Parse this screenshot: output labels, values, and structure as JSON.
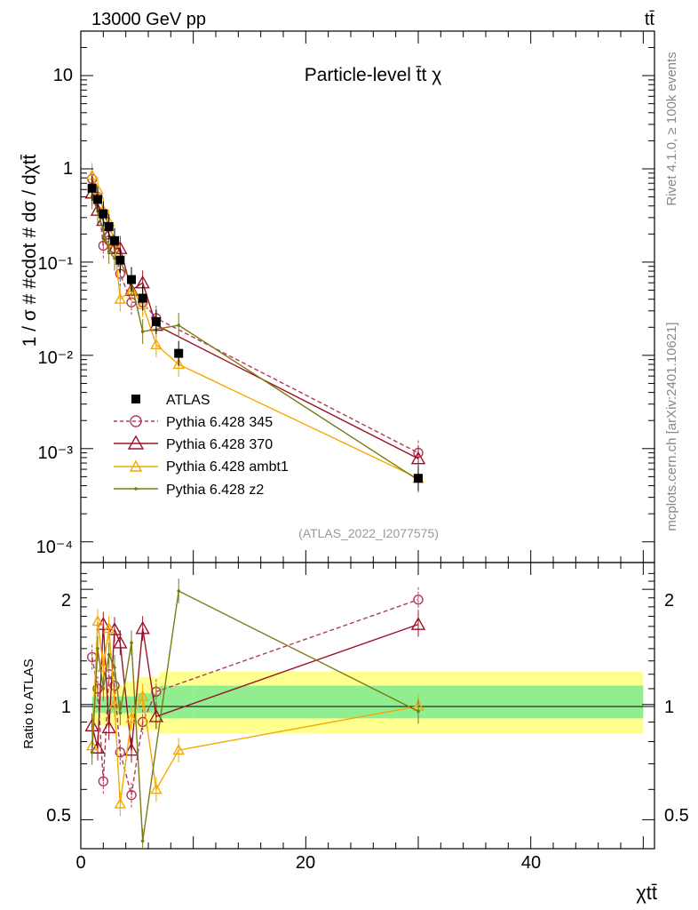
{
  "header": {
    "beam_label": "13000 GeV pp",
    "process_label": "tt̄"
  },
  "side_text": {
    "rivet": "Rivet 4.1.0, ≥ 100k events",
    "mcplots": "mcplots.cern.ch [arXiv:2401.10621]"
  },
  "colors": {
    "atlas": "#000000",
    "p345": "#b03a5a",
    "p370": "#9b1228",
    "ambt1": "#f5a800",
    "z2": "#7a7a14",
    "band_inner": "#90ee90",
    "band_outer": "#ffff90"
  },
  "chart_data": [
    {
      "type": "scatter",
      "title": "Particle-level t̄t χ",
      "ylabel": "1 / σ # #cdot # dσ / dχtt̄",
      "watermark": "(ATLAS_2022_I2077575)",
      "xlim": [
        0,
        51
      ],
      "ylim": [
        6e-05,
        30
      ],
      "yscale": "log",
      "ytick_labels": [
        "10",
        "1",
        "10⁻¹",
        "10⁻²",
        "10⁻³",
        "10⁻⁴"
      ],
      "ytick_values": [
        10,
        1,
        0.1,
        0.01,
        0.001,
        0.0001
      ],
      "legend_position": "middle-left",
      "series": [
        {
          "name": "ATLAS",
          "style": "square",
          "color_key": "atlas",
          "x": [
            1.0,
            1.5,
            2.0,
            2.5,
            3.0,
            3.5,
            4.5,
            5.5,
            6.7,
            8.7,
            30
          ],
          "y": [
            0.62,
            0.47,
            0.33,
            0.24,
            0.17,
            0.105,
            0.065,
            0.041,
            0.023,
            0.0105,
            0.00048
          ]
        },
        {
          "name": "Pythia 6.428 345",
          "style": "circle-dashed",
          "color_key": "p345",
          "x": [
            1.0,
            1.5,
            2.0,
            2.5,
            3.0,
            3.5,
            4.5,
            5.5,
            6.7,
            30
          ],
          "y": [
            0.78,
            0.5,
            0.15,
            0.17,
            0.14,
            0.075,
            0.037,
            0.037,
            0.025,
            0.0009
          ]
        },
        {
          "name": "Pythia 6.428 370",
          "style": "triangle-solid",
          "color_key": "p370",
          "x": [
            1.0,
            1.5,
            2.0,
            2.5,
            3.0,
            3.5,
            4.5,
            5.5,
            6.7,
            30
          ],
          "y": [
            0.55,
            0.36,
            0.28,
            0.2,
            0.14,
            0.14,
            0.05,
            0.06,
            0.021,
            0.00078
          ]
        },
        {
          "name": "Pythia 6.428 ambt1",
          "style": "triangle-solid",
          "color_key": "ambt1",
          "x": [
            1.0,
            1.5,
            2.0,
            2.5,
            3.0,
            3.5,
            4.5,
            5.5,
            6.7,
            8.7,
            30
          ],
          "y": [
            0.85,
            0.6,
            0.36,
            0.27,
            0.16,
            0.04,
            0.05,
            0.035,
            0.013,
            0.008,
            0.00048
          ]
        },
        {
          "name": "Pythia 6.428 z2",
          "style": "dot-solid",
          "color_key": "z2",
          "x": [
            1.0,
            1.5,
            2.0,
            2.5,
            3.0,
            3.5,
            4.5,
            5.5,
            8.7,
            30
          ],
          "y": [
            0.5,
            0.35,
            0.22,
            0.13,
            0.11,
            0.1,
            0.06,
            0.018,
            0.021,
            0.00046
          ]
        }
      ]
    },
    {
      "type": "scatter",
      "xlabel": "χtt̄",
      "ylabel": "Ratio to ATLAS",
      "xlim": [
        0,
        51
      ],
      "ylim": [
        0.42,
        2.35
      ],
      "yscale": "log",
      "ytick_labels": [
        "2",
        "1",
        "0.5"
      ],
      "ytick_values": [
        2,
        1,
        0.5
      ],
      "xtick_labels": [
        "0",
        "20",
        "40"
      ],
      "xtick_values": [
        0,
        20,
        40
      ],
      "bands": {
        "x_edges": [
          1,
          4,
          5,
          7,
          10,
          50
        ],
        "inner_low": [
          0.95,
          0.95,
          0.95,
          0.92,
          0.92
        ],
        "inner_high": [
          1.05,
          1.05,
          1.07,
          1.12,
          1.12
        ],
        "outer_low": [
          0.88,
          0.88,
          0.86,
          0.84,
          0.84
        ],
        "outer_high": [
          1.12,
          1.15,
          1.18,
          1.22,
          1.22
        ]
      },
      "series": [
        {
          "name": "Pythia 6.428 345",
          "style": "circle-dashed",
          "color_key": "p345",
          "x": [
            1.0,
            1.5,
            2.0,
            2.5,
            3.0,
            3.5,
            4.5,
            5.5,
            6.7,
            30
          ],
          "y": [
            1.33,
            1.1,
            0.63,
            1.2,
            1.12,
            0.75,
            0.58,
            0.9,
            1.08,
            1.88
          ]
        },
        {
          "name": "Pythia 6.428 370",
          "style": "triangle-solid",
          "color_key": "p370",
          "x": [
            1.0,
            1.5,
            2.0,
            2.5,
            3.0,
            3.5,
            4.5,
            5.5,
            6.7,
            30
          ],
          "y": [
            0.88,
            0.77,
            1.62,
            0.87,
            1.57,
            1.45,
            0.76,
            1.58,
            0.93,
            1.62
          ]
        },
        {
          "name": "Pythia 6.428 ambt1",
          "style": "triangle-solid",
          "color_key": "ambt1",
          "x": [
            1.0,
            1.5,
            2.0,
            2.5,
            3.0,
            3.5,
            4.5,
            5.5,
            6.7,
            8.7,
            30
          ],
          "y": [
            0.78,
            1.65,
            1.25,
            1.58,
            1.0,
            0.55,
            0.92,
            1.05,
            0.6,
            0.76,
            0.99
          ]
        },
        {
          "name": "Pythia 6.428 z2",
          "style": "dot-solid",
          "color_key": "z2",
          "x": [
            1.0,
            1.5,
            2.0,
            2.5,
            3.0,
            3.5,
            4.5,
            5.5,
            8.7,
            30
          ],
          "y": [
            0.75,
            1.4,
            1.1,
            1.35,
            1.25,
            0.95,
            1.45,
            0.44,
            1.98,
            0.96
          ]
        }
      ]
    }
  ]
}
